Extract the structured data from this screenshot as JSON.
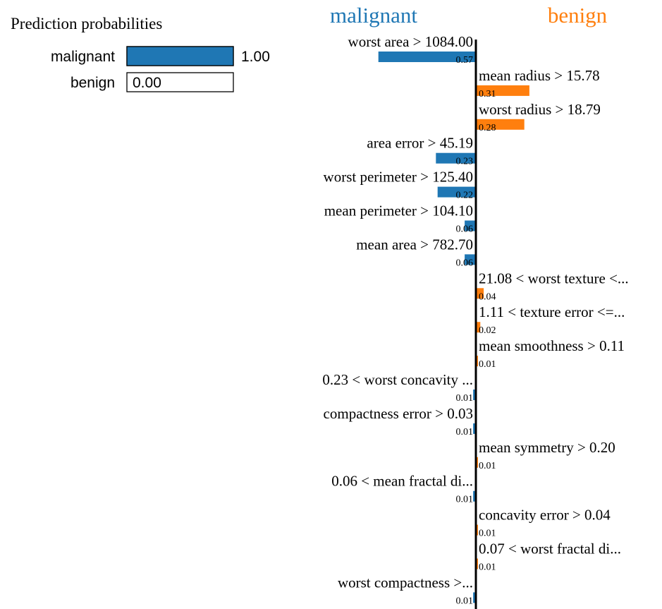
{
  "chart_data": [
    {
      "type": "bar",
      "orientation": "horizontal",
      "title": "Prediction probabilities",
      "categories": [
        "malignant",
        "benign"
      ],
      "values": [
        1.0,
        0.0
      ],
      "value_labels": [
        "1.00",
        "0.00"
      ],
      "xlim": [
        0,
        1
      ]
    },
    {
      "type": "bar",
      "orientation": "horizontal-diverging",
      "left_class": "malignant",
      "right_class": "benign",
      "features": [
        {
          "label": "worst area > 1084.00",
          "weight": 0.57,
          "value_label": "0.57",
          "side": "malignant"
        },
        {
          "label": "mean radius > 15.78",
          "weight": 0.31,
          "value_label": "0.31",
          "side": "benign"
        },
        {
          "label": "worst radius > 18.79",
          "weight": 0.28,
          "value_label": "0.28",
          "side": "benign"
        },
        {
          "label": "area error > 45.19",
          "weight": 0.23,
          "value_label": "0.23",
          "side": "malignant"
        },
        {
          "label": "worst perimeter > 125.40",
          "weight": 0.22,
          "value_label": "0.22",
          "side": "malignant"
        },
        {
          "label": "mean perimeter > 104.10",
          "weight": 0.06,
          "value_label": "0.06",
          "side": "malignant"
        },
        {
          "label": "mean area > 782.70",
          "weight": 0.06,
          "value_label": "0.06",
          "side": "malignant"
        },
        {
          "label": "21.08 < worst texture <...",
          "weight": 0.04,
          "value_label": "0.04",
          "side": "benign"
        },
        {
          "label": "1.11 < texture error <=...",
          "weight": 0.02,
          "value_label": "0.02",
          "side": "benign"
        },
        {
          "label": "mean smoothness > 0.11",
          "weight": 0.005,
          "value_label": "0.01",
          "side": "benign"
        },
        {
          "label": "0.23 < worst concavity ...",
          "weight": 0.01,
          "value_label": "0.01",
          "side": "malignant"
        },
        {
          "label": "compactness error > 0.03",
          "weight": 0.01,
          "value_label": "0.01",
          "side": "malignant"
        },
        {
          "label": "mean symmetry > 0.20",
          "weight": 0.005,
          "value_label": "0.01",
          "side": "benign"
        },
        {
          "label": "0.06 < mean fractal di...",
          "weight": 0.01,
          "value_label": "0.01",
          "side": "malignant"
        },
        {
          "label": "concavity error > 0.04",
          "weight": 0.005,
          "value_label": "0.01",
          "side": "benign"
        },
        {
          "label": "0.07 < worst fractal di...",
          "weight": 0.005,
          "value_label": "0.01",
          "side": "benign"
        },
        {
          "label": "worst compactness >...",
          "weight": 0.01,
          "value_label": "0.01",
          "side": "malignant"
        }
      ]
    }
  ],
  "colors": {
    "malignant": "#1f77b4",
    "benign": "#ff7f0e",
    "axis": "#000000",
    "text": "#000000"
  }
}
